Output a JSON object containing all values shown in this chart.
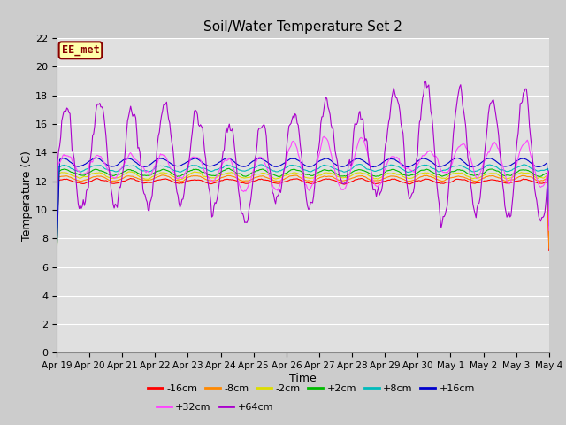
{
  "title": "Soil/Water Temperature Set 2",
  "xlabel": "Time",
  "ylabel": "Temperature (C)",
  "ylim": [
    0,
    22
  ],
  "yticks": [
    0,
    2,
    4,
    6,
    8,
    10,
    12,
    14,
    16,
    18,
    20,
    22
  ],
  "watermark": "EE_met",
  "series_colors": {
    "-16cm": "#ff0000",
    "-8cm": "#ff8800",
    "-2cm": "#dddd00",
    "+2cm": "#00bb00",
    "+8cm": "#00bbbb",
    "+16cm": "#0000cc",
    "+32cm": "#ff44ff",
    "+64cm": "#aa00cc"
  },
  "x_labels": [
    "Apr 19",
    "Apr 20",
    "Apr 21",
    "Apr 22",
    "Apr 23",
    "Apr 24",
    "Apr 25",
    "Apr 26",
    "Apr 27",
    "Apr 28",
    "Apr 29",
    "Apr 30",
    "May 1",
    "May 2",
    "May 3",
    "May 4"
  ],
  "legend_row1": [
    "-16cm",
    "-8cm",
    "-2cm",
    "+2cm",
    "+8cm",
    "+16cm"
  ],
  "legend_row2": [
    "+32cm",
    "+64cm"
  ],
  "n_points": 480,
  "fig_width": 6.4,
  "fig_height": 4.8,
  "dpi": 100
}
